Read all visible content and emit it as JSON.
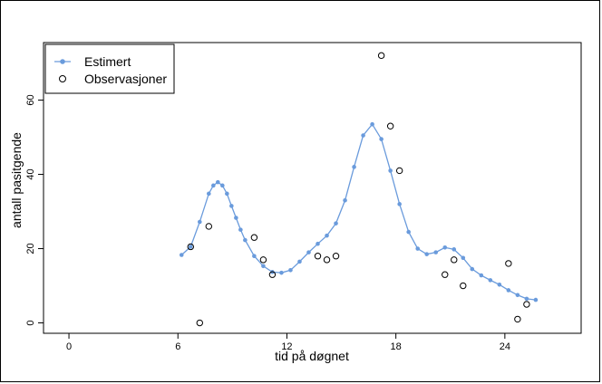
{
  "chart_data": {
    "type": "line",
    "xlabel": "tid på døgnet",
    "ylabel": "antall pasitgende",
    "xlim": [
      -1.4,
      28.2
    ],
    "ylim": [
      -2.8,
      75.5
    ],
    "x_ticks": [
      0,
      6,
      12,
      18,
      24
    ],
    "y_ticks": [
      0,
      20,
      40,
      60
    ],
    "grid": false,
    "legend_position": "top-left",
    "colors": {
      "estimated": "#6a9bdc",
      "observed": "#000000"
    },
    "series": [
      {
        "name": "Estimert",
        "style": "line-with-points",
        "points": [
          [
            6.2,
            18.3
          ],
          [
            6.7,
            20.5
          ],
          [
            7.2,
            27.2
          ],
          [
            7.7,
            34.8
          ],
          [
            7.95,
            37.0
          ],
          [
            8.2,
            37.9
          ],
          [
            8.45,
            37.0
          ],
          [
            8.7,
            34.8
          ],
          [
            8.95,
            31.5
          ],
          [
            9.2,
            28.3
          ],
          [
            9.45,
            25.1
          ],
          [
            9.7,
            22.3
          ],
          [
            10.2,
            18.0
          ],
          [
            10.7,
            15.3
          ],
          [
            11.2,
            13.7
          ],
          [
            11.7,
            13.5
          ],
          [
            12.2,
            14.2
          ],
          [
            12.7,
            16.5
          ],
          [
            13.2,
            19.0
          ],
          [
            13.7,
            21.3
          ],
          [
            14.2,
            23.5
          ],
          [
            14.7,
            26.8
          ],
          [
            15.2,
            33.0
          ],
          [
            15.7,
            42.0
          ],
          [
            16.2,
            50.5
          ],
          [
            16.7,
            53.5
          ],
          [
            17.2,
            49.5
          ],
          [
            17.7,
            41.0
          ],
          [
            18.2,
            32.0
          ],
          [
            18.7,
            24.5
          ],
          [
            19.2,
            20.0
          ],
          [
            19.7,
            18.5
          ],
          [
            20.2,
            19.0
          ],
          [
            20.7,
            20.3
          ],
          [
            21.2,
            19.8
          ],
          [
            21.7,
            17.5
          ],
          [
            22.2,
            14.5
          ],
          [
            22.7,
            12.8
          ],
          [
            23.2,
            11.5
          ],
          [
            23.7,
            10.3
          ],
          [
            24.2,
            8.8
          ],
          [
            24.7,
            7.5
          ],
          [
            25.2,
            6.5
          ],
          [
            25.7,
            6.2
          ]
        ]
      },
      {
        "name": "Observasjoner",
        "style": "open-points",
        "points": [
          [
            6.7,
            20.5
          ],
          [
            7.2,
            0.0
          ],
          [
            7.7,
            26.0
          ],
          [
            10.2,
            23.0
          ],
          [
            10.7,
            17.0
          ],
          [
            11.2,
            13.0
          ],
          [
            13.7,
            18.0
          ],
          [
            14.2,
            17.0
          ],
          [
            14.7,
            18.0
          ],
          [
            17.2,
            72.0
          ],
          [
            17.7,
            53.0
          ],
          [
            18.2,
            41.0
          ],
          [
            20.7,
            13.0
          ],
          [
            21.2,
            17.0
          ],
          [
            21.7,
            10.0
          ],
          [
            24.2,
            16.0
          ],
          [
            24.7,
            1.0
          ],
          [
            25.2,
            5.0
          ]
        ]
      }
    ]
  }
}
